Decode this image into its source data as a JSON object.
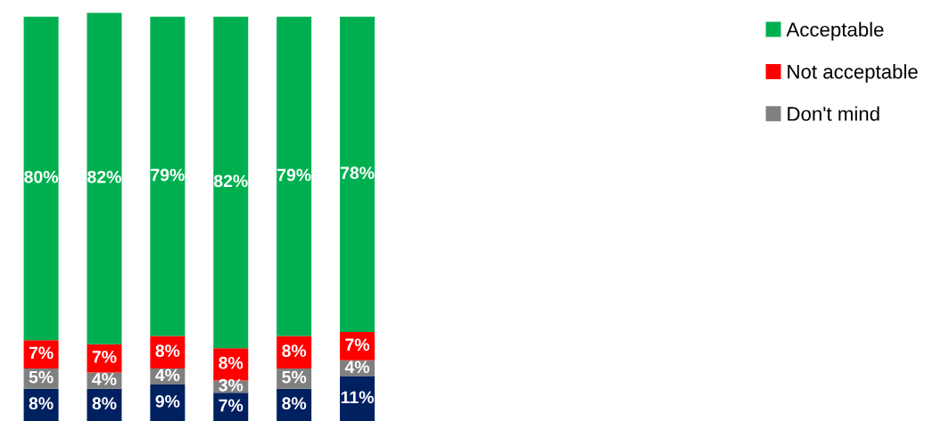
{
  "chart_data": {
    "type": "bar",
    "stacked": true,
    "categories": [
      null,
      null,
      null,
      null,
      null,
      null
    ],
    "series": [
      {
        "color": "#002060",
        "values": [
          8,
          8,
          9,
          7,
          8,
          11
        ],
        "value_labels": [
          "8%",
          "8%",
          "9%",
          "7%",
          "8%",
          "11%"
        ]
      },
      {
        "name": "Don't mind",
        "color": "#808080",
        "values": [
          5,
          4,
          4,
          3,
          5,
          4
        ],
        "value_labels": [
          "5%",
          "4%",
          "4%",
          "3%",
          "5%",
          "4%"
        ]
      },
      {
        "name": "Not acceptable",
        "color": "#ff0000",
        "values": [
          7,
          7,
          8,
          8,
          8,
          7
        ],
        "value_labels": [
          "7%",
          "7%",
          "8%",
          "8%",
          "8%",
          "7%"
        ]
      },
      {
        "name": "Acceptable",
        "color": "#00b050",
        "values": [
          80,
          82,
          79,
          82,
          79,
          78
        ],
        "value_labels": [
          "80%",
          "82%",
          "79%",
          "82%",
          "79%",
          "78%"
        ]
      }
    ],
    "ylim": [
      0,
      101
    ],
    "legend": "top right"
  }
}
